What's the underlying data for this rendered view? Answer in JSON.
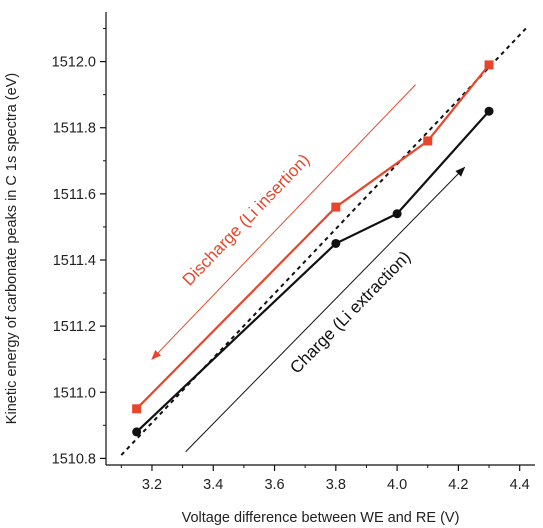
{
  "chart_data": {
    "type": "line",
    "xlabel": "Voltage difference between WE and RE (V)",
    "ylabel": "Kinetic energy of carbonate peaks in C 1s spectra (eV)",
    "xlim": [
      3.05,
      4.45
    ],
    "ylim": [
      1510.78,
      1512.15
    ],
    "x_ticks": [
      {
        "value": 3.2,
        "label": "3.2"
      },
      {
        "value": 3.4,
        "label": "3.4"
      },
      {
        "value": 3.6,
        "label": "3.6"
      },
      {
        "value": 3.8,
        "label": "3.8"
      },
      {
        "value": 4.0,
        "label": "4.0"
      },
      {
        "value": 4.2,
        "label": "4.2"
      },
      {
        "value": 4.4,
        "label": "4.4"
      }
    ],
    "y_ticks": [
      {
        "value": 1510.8,
        "label": "1510.8"
      },
      {
        "value": 1511.0,
        "label": "1511.0"
      },
      {
        "value": 1511.2,
        "label": "1511.2"
      },
      {
        "value": 1511.4,
        "label": "1511.4"
      },
      {
        "value": 1511.6,
        "label": "1511.6"
      },
      {
        "value": 1511.8,
        "label": "1511.8"
      },
      {
        "value": 1512.0,
        "label": "1512.0"
      }
    ],
    "grid": false,
    "legend": "none",
    "series": [
      {
        "color": "#e8462a",
        "marker": "square",
        "x": [
          3.15,
          3.8,
          4.1,
          4.3
        ],
        "y": [
          1510.95,
          1511.56,
          1511.76,
          1511.99
        ]
      },
      {
        "color": "#111111",
        "marker": "circle",
        "x": [
          3.15,
          3.8,
          4.0,
          4.3
        ],
        "y": [
          1510.88,
          1511.45,
          1511.54,
          1511.85
        ]
      }
    ],
    "reference_line": {
      "style": "dashed",
      "color": "#111111",
      "x": [
        3.1,
        4.42
      ],
      "y": [
        1510.81,
        1512.1
      ]
    },
    "annotations": [
      {
        "text": "Discharge (Li insertion)",
        "color": "#e8462a",
        "direction": "decreasing",
        "arrow_from": [
          4.06,
          1511.93
        ],
        "arrow_to": [
          3.2,
          1511.1
        ],
        "label_at": [
          3.52,
          1511.51
        ]
      },
      {
        "text": "Charge (Li extraction)",
        "color": "#111111",
        "direction": "increasing",
        "arrow_from": [
          3.31,
          1510.82
        ],
        "arrow_to": [
          4.22,
          1511.68
        ],
        "label_at": [
          3.86,
          1511.23
        ]
      }
    ]
  }
}
